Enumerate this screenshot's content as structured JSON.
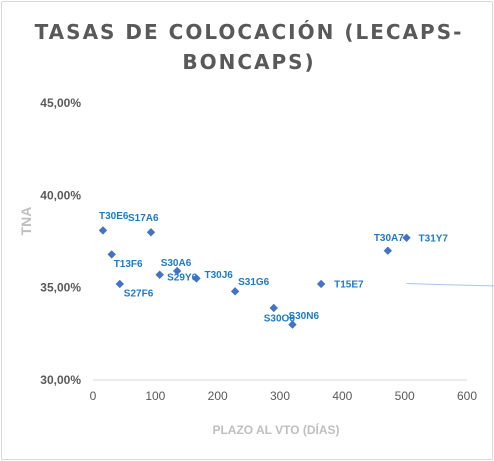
{
  "chart_data": {
    "type": "scatter",
    "title": "TASAS DE COLOCACIÓN (LECAPS-BONCAPS)",
    "title_lines": [
      "TASAS DE COLOCACIÓN (LECAPS-",
      "BONCAPS)"
    ],
    "xlabel": "PLAZO AL VTO (DÍAS)",
    "ylabel": "TNA",
    "xlim": [
      0,
      600
    ],
    "ylim": [
      0.3,
      0.45
    ],
    "x_ticks": [
      0,
      100,
      200,
      300,
      400,
      500,
      600
    ],
    "y_ticks": [
      0.3,
      0.35,
      0.4,
      0.45
    ],
    "y_tick_labels": [
      "30,00%",
      "35,00%",
      "40,00%",
      "45,00%"
    ],
    "x_tick_labels": [
      "0",
      "100",
      "200",
      "300",
      "400",
      "500",
      "600"
    ],
    "grid": false,
    "legend": "none",
    "marker_color": "#4472c4",
    "label_color": "#1f7ac6",
    "trendline": {
      "type": "logarithmic",
      "color": "#a9c4e4"
    },
    "points": [
      {
        "label": "T30E6",
        "x": 16,
        "y": 0.381
      },
      {
        "label": "S17A6",
        "x": 93,
        "y": 0.38
      },
      {
        "label": "T13F6",
        "x": 30,
        "y": 0.368
      },
      {
        "label": "S27F6",
        "x": 43,
        "y": 0.352
      },
      {
        "label": "S30A6",
        "x": 107,
        "y": 0.357
      },
      {
        "label": "S29Y6",
        "x": 135,
        "y": 0.359
      },
      {
        "label": "T30J6",
        "x": 166,
        "y": 0.355
      },
      {
        "label": "S31G6",
        "x": 228,
        "y": 0.348
      },
      {
        "label": "S30O6",
        "x": 290,
        "y": 0.339
      },
      {
        "label": "S30N6",
        "x": 320,
        "y": 0.33
      },
      {
        "label": "T15E7",
        "x": 366,
        "y": 0.352
      },
      {
        "label": "T30A7",
        "x": 473,
        "y": 0.37
      },
      {
        "label": "T31Y7",
        "x": 503,
        "y": 0.377
      }
    ]
  }
}
